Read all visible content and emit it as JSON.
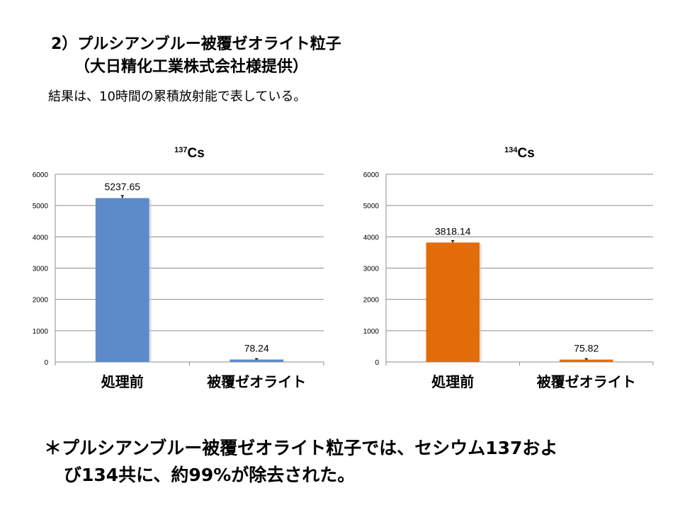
{
  "title_line1": "2）プルシアンブルー被覆ゼオライト粒子",
  "title_line2": "（大日精化工業株式会社様提供）",
  "subtitle": "結果は、10時間の累積放射能で表している。",
  "chart_data": [
    {
      "type": "bar",
      "title_sup": "137",
      "title": "Cs",
      "categories": [
        "処理前",
        "被覆ゼオライト"
      ],
      "values": [
        5237.65,
        78.24
      ],
      "data_labels": [
        "5237.65",
        "78.24"
      ],
      "color": "#5b8bc9",
      "ylim": [
        0,
        6000
      ],
      "yticks": [
        0,
        1000,
        2000,
        3000,
        4000,
        5000,
        6000
      ],
      "grid": true,
      "error_bars": true
    },
    {
      "type": "bar",
      "title_sup": "134",
      "title": "Cs",
      "categories": [
        "処理前",
        "被覆ゼオライト"
      ],
      "values": [
        3818.14,
        75.82
      ],
      "data_labels": [
        "3818.14",
        "75.82"
      ],
      "color": "#e36c0a",
      "ylim": [
        0,
        6000
      ],
      "yticks": [
        0,
        1000,
        2000,
        3000,
        4000,
        5000,
        6000
      ],
      "grid": true,
      "error_bars": true
    }
  ],
  "note_line1": "＊プルシアンブルー被覆ゼオライト粒子では、セシウム137およ",
  "note_line2": "び134共に、約99%が除去された。"
}
